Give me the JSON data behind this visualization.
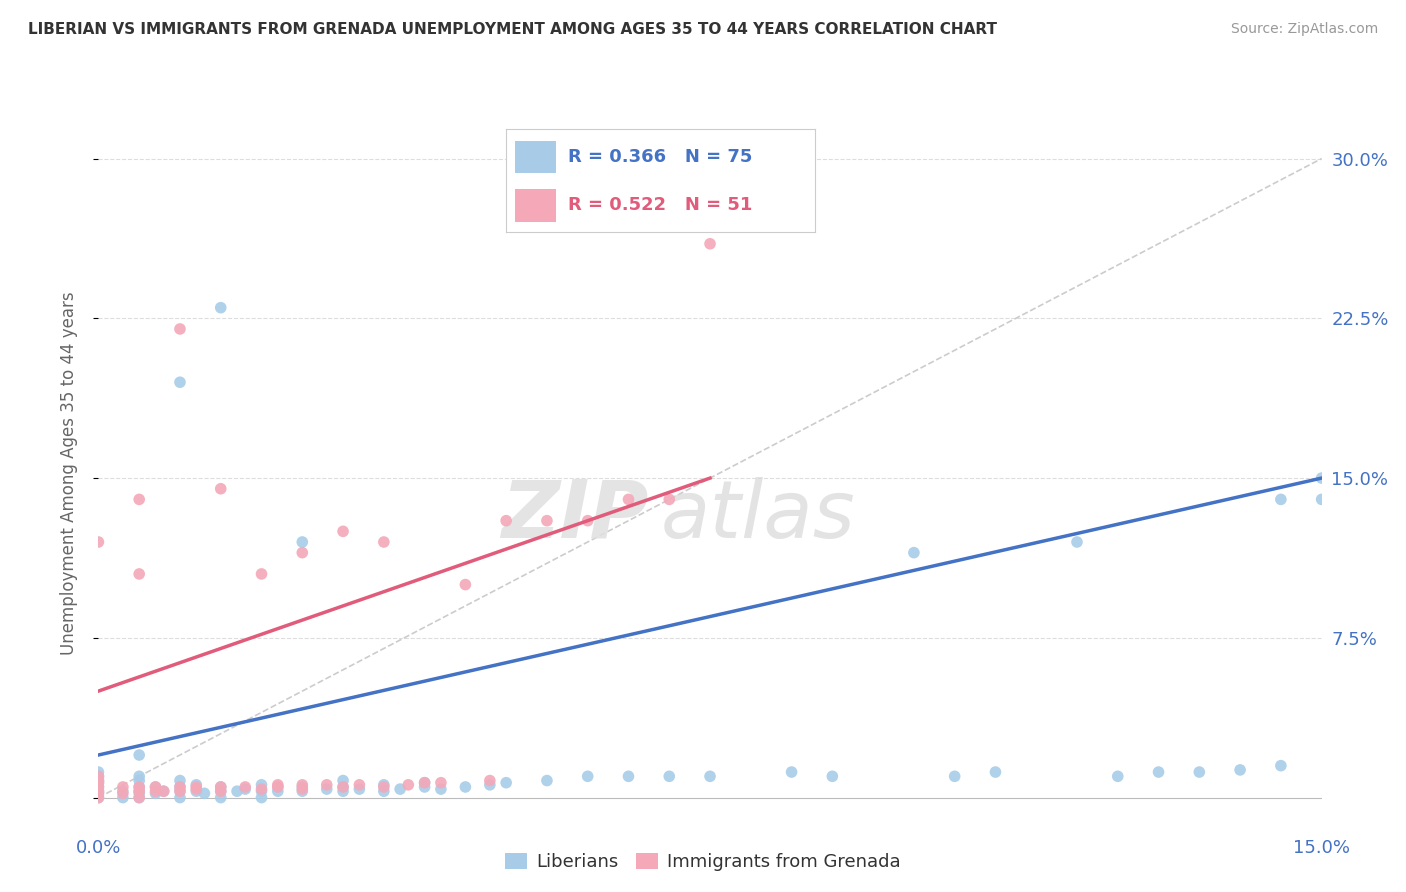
{
  "title": "LIBERIAN VS IMMIGRANTS FROM GRENADA UNEMPLOYMENT AMONG AGES 35 TO 44 YEARS CORRELATION CHART",
  "source": "Source: ZipAtlas.com",
  "ylabel": "Unemployment Among Ages 35 to 44 years",
  "xmin": 0.0,
  "xmax": 0.15,
  "ymin": -0.015,
  "ymax": 0.32,
  "liberian_R": 0.366,
  "liberian_N": 75,
  "grenada_R": 0.522,
  "grenada_N": 51,
  "liberian_color": "#a8cce8",
  "grenada_color": "#f4a8b8",
  "liberian_line_color": "#4472c4",
  "grenada_line_color": "#e05c7a",
  "watermark_zip": "ZIP",
  "watermark_atlas": "atlas",
  "lib_x": [
    0.0,
    0.0,
    0.0,
    0.0,
    0.0,
    0.0,
    0.0,
    0.0,
    0.003,
    0.003,
    0.005,
    0.005,
    0.005,
    0.005,
    0.005,
    0.005,
    0.005,
    0.007,
    0.007,
    0.008,
    0.01,
    0.01,
    0.01,
    0.01,
    0.01,
    0.012,
    0.012,
    0.013,
    0.015,
    0.015,
    0.015,
    0.015,
    0.017,
    0.018,
    0.02,
    0.02,
    0.02,
    0.022,
    0.022,
    0.025,
    0.025,
    0.025,
    0.028,
    0.03,
    0.03,
    0.03,
    0.032,
    0.035,
    0.035,
    0.037,
    0.04,
    0.04,
    0.042,
    0.045,
    0.048,
    0.05,
    0.055,
    0.06,
    0.065,
    0.07,
    0.075,
    0.085,
    0.09,
    0.1,
    0.105,
    0.11,
    0.12,
    0.125,
    0.13,
    0.135,
    0.14,
    0.145,
    0.145,
    0.15,
    0.15
  ],
  "lib_y": [
    0.0,
    0.002,
    0.003,
    0.005,
    0.007,
    0.008,
    0.01,
    0.012,
    0.0,
    0.003,
    0.0,
    0.002,
    0.003,
    0.005,
    0.008,
    0.01,
    0.02,
    0.002,
    0.005,
    0.003,
    0.0,
    0.003,
    0.005,
    0.008,
    0.195,
    0.003,
    0.006,
    0.002,
    0.0,
    0.003,
    0.005,
    0.23,
    0.003,
    0.004,
    0.0,
    0.003,
    0.006,
    0.003,
    0.005,
    0.003,
    0.005,
    0.12,
    0.004,
    0.003,
    0.005,
    0.008,
    0.004,
    0.003,
    0.006,
    0.004,
    0.005,
    0.007,
    0.004,
    0.005,
    0.006,
    0.007,
    0.008,
    0.01,
    0.01,
    0.01,
    0.01,
    0.012,
    0.01,
    0.115,
    0.01,
    0.012,
    0.12,
    0.01,
    0.012,
    0.012,
    0.013,
    0.14,
    0.015,
    0.14,
    0.15
  ],
  "gren_x": [
    0.0,
    0.0,
    0.0,
    0.0,
    0.0,
    0.0,
    0.0,
    0.0,
    0.003,
    0.003,
    0.005,
    0.005,
    0.005,
    0.005,
    0.005,
    0.007,
    0.007,
    0.008,
    0.01,
    0.01,
    0.01,
    0.012,
    0.012,
    0.015,
    0.015,
    0.015,
    0.018,
    0.02,
    0.02,
    0.022,
    0.022,
    0.025,
    0.025,
    0.025,
    0.028,
    0.03,
    0.03,
    0.032,
    0.035,
    0.035,
    0.038,
    0.04,
    0.042,
    0.045,
    0.048,
    0.05,
    0.055,
    0.06,
    0.065,
    0.07,
    0.075
  ],
  "gren_y": [
    0.0,
    0.002,
    0.003,
    0.005,
    0.007,
    0.008,
    0.01,
    0.12,
    0.002,
    0.005,
    0.0,
    0.003,
    0.005,
    0.105,
    0.14,
    0.003,
    0.005,
    0.003,
    0.003,
    0.005,
    0.22,
    0.004,
    0.005,
    0.003,
    0.005,
    0.145,
    0.005,
    0.004,
    0.105,
    0.005,
    0.006,
    0.004,
    0.006,
    0.115,
    0.006,
    0.005,
    0.125,
    0.006,
    0.005,
    0.12,
    0.006,
    0.007,
    0.007,
    0.1,
    0.008,
    0.13,
    0.13,
    0.13,
    0.14,
    0.14,
    0.26
  ],
  "lib_trend_x0": 0.0,
  "lib_trend_x1": 0.15,
  "lib_trend_y0": 0.02,
  "lib_trend_y1": 0.15,
  "gren_trend_x0": 0.0,
  "gren_trend_x1": 0.075,
  "gren_trend_y0": 0.05,
  "gren_trend_y1": 0.15
}
